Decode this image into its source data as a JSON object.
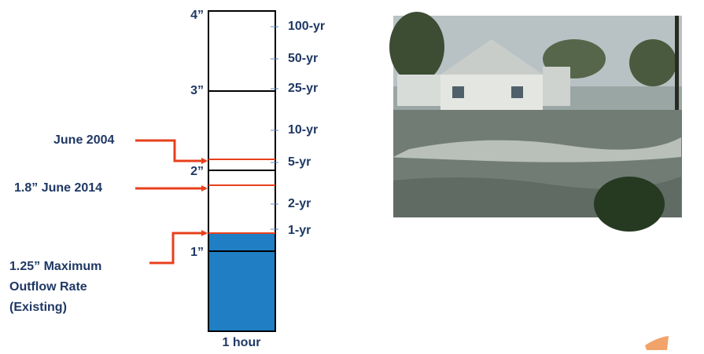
{
  "inch_labels": [
    "4”",
    "3”",
    "2”",
    "1”"
  ],
  "return_periods": [
    "100-yr",
    "50-yr",
    "25-yr",
    "10-yr",
    "5-yr",
    "2-yr",
    "1-yr"
  ],
  "annotations": {
    "june_2004": "June 2004",
    "june_2014": "1.8” June 2014",
    "max_outflow": [
      "1.25” Maximum",
      "Outflow Rate",
      "(Existing)"
    ]
  },
  "duration_label": "1 hour"
}
